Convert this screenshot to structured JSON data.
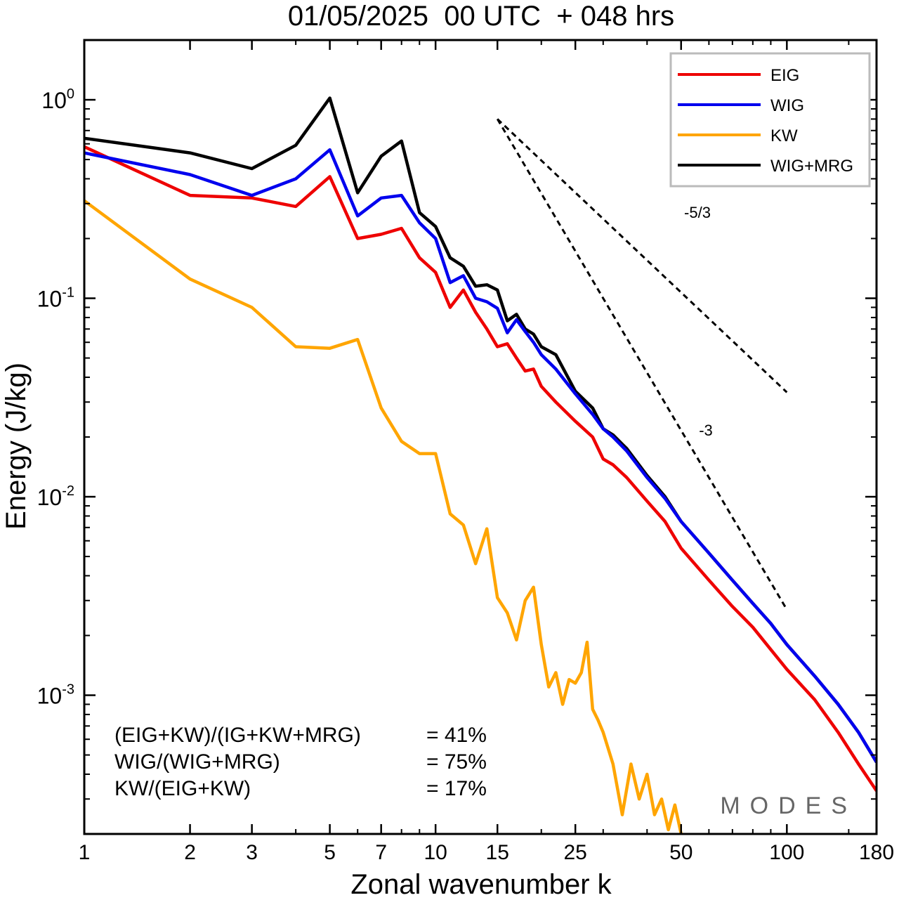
{
  "chart_data": {
    "type": "line",
    "title": "01/05/2025  00 UTC  + 048 hrs",
    "xlabel": "Zonal wavenumber k",
    "ylabel": "Energy (J/kg)",
    "xscale": "log",
    "yscale": "log",
    "xlim": [
      1,
      180
    ],
    "ylim": [
      0.0002,
      2.0
    ],
    "x_ticks": [
      1,
      2,
      3,
      5,
      7,
      10,
      15,
      25,
      50,
      100,
      180
    ],
    "x_tick_labels": [
      "1",
      "2",
      "3",
      "5",
      "7",
      "10",
      "15",
      "25",
      "50",
      "100",
      "180"
    ],
    "y_ticks": [
      {
        "value": 1,
        "base": "10",
        "exp": "0"
      },
      {
        "value": 0.1,
        "base": "10",
        "exp": "-1"
      },
      {
        "value": 0.01,
        "base": "10",
        "exp": "-2"
      },
      {
        "value": 0.001,
        "base": "10",
        "exp": "-3"
      }
    ],
    "grid": false,
    "legend_position": "top-right",
    "series": [
      {
        "name": "EIG",
        "color": "#ee0000",
        "x": [
          1,
          2,
          3,
          4,
          5,
          6,
          7,
          8,
          9,
          10,
          11,
          12,
          13,
          14,
          15,
          16,
          17,
          18,
          19,
          20,
          22,
          25,
          28,
          30,
          32,
          35,
          40,
          45,
          50,
          60,
          70,
          80,
          90,
          100,
          120,
          140,
          160,
          180
        ],
        "y": [
          0.58,
          0.33,
          0.32,
          0.29,
          0.41,
          0.2,
          0.21,
          0.225,
          0.16,
          0.135,
          0.09,
          0.11,
          0.085,
          0.07,
          0.057,
          0.059,
          0.05,
          0.043,
          0.044,
          0.036,
          0.03,
          0.024,
          0.02,
          0.0155,
          0.0145,
          0.0125,
          0.0095,
          0.0075,
          0.0055,
          0.0038,
          0.0028,
          0.0022,
          0.0017,
          0.00135,
          0.00095,
          0.00065,
          0.00045,
          0.00033
        ]
      },
      {
        "name": "WIG",
        "color": "#0000ee",
        "x": [
          1,
          2,
          3,
          4,
          5,
          6,
          7,
          8,
          9,
          10,
          11,
          12,
          13,
          14,
          15,
          16,
          17,
          18,
          19,
          20,
          22,
          25,
          28,
          30,
          32,
          35,
          40,
          45,
          50,
          60,
          70,
          80,
          90,
          100,
          120,
          140,
          160,
          180
        ],
        "y": [
          0.54,
          0.42,
          0.33,
          0.4,
          0.56,
          0.26,
          0.32,
          0.33,
          0.24,
          0.2,
          0.12,
          0.13,
          0.1,
          0.096,
          0.089,
          0.067,
          0.078,
          0.068,
          0.06,
          0.052,
          0.044,
          0.033,
          0.026,
          0.022,
          0.02,
          0.017,
          0.0125,
          0.0098,
          0.0075,
          0.0052,
          0.0038,
          0.0029,
          0.0023,
          0.0018,
          0.00125,
          0.0009,
          0.00065,
          0.00046
        ]
      },
      {
        "name": "KW",
        "color": "#ffa500",
        "x": [
          1,
          2,
          3,
          4,
          5,
          6,
          7,
          8,
          9,
          10,
          11,
          12,
          13,
          14,
          15,
          16,
          17,
          18,
          19,
          20,
          21,
          22,
          23,
          24,
          25,
          26,
          27,
          28,
          29,
          30,
          32,
          34,
          36,
          38,
          40,
          42,
          44,
          46,
          48,
          50
        ],
        "y": [
          0.31,
          0.125,
          0.09,
          0.057,
          0.056,
          0.062,
          0.028,
          0.019,
          0.0165,
          0.0165,
          0.0082,
          0.0072,
          0.0046,
          0.0069,
          0.0031,
          0.0026,
          0.0019,
          0.003,
          0.0035,
          0.0018,
          0.0011,
          0.0013,
          0.0009,
          0.0012,
          0.00115,
          0.0013,
          0.00185,
          0.00085,
          0.00075,
          0.00065,
          0.00045,
          0.00025,
          0.00045,
          0.0003,
          0.0004,
          0.00025,
          0.0003,
          0.00021,
          0.00028,
          0.0002
        ]
      },
      {
        "name": "WIG+MRG",
        "color": "#000000",
        "x": [
          1,
          2,
          3,
          4,
          5,
          6,
          7,
          8,
          9,
          10,
          11,
          12,
          13,
          14,
          15,
          16,
          17,
          18,
          19,
          20,
          22,
          25,
          28,
          30,
          32,
          35,
          40,
          45,
          50,
          60,
          70,
          80,
          90,
          100,
          120,
          140,
          160,
          180
        ],
        "y": [
          0.64,
          0.54,
          0.45,
          0.59,
          1.02,
          0.34,
          0.52,
          0.62,
          0.27,
          0.23,
          0.16,
          0.145,
          0.115,
          0.117,
          0.11,
          0.077,
          0.083,
          0.07,
          0.066,
          0.057,
          0.052,
          0.034,
          0.028,
          0.022,
          0.0205,
          0.0175,
          0.0128,
          0.01,
          0.0075,
          0.0052,
          0.0038,
          0.0029,
          0.0023,
          0.0018,
          0.00125,
          0.0009,
          0.00065,
          0.00046
        ]
      }
    ],
    "reference_lines": [
      {
        "label": "-5/3",
        "x": [
          15,
          100
        ],
        "y": [
          0.8,
          0.0336
        ]
      },
      {
        "label": "-3",
        "x": [
          15,
          100
        ],
        "y": [
          0.8,
          0.0027
        ]
      }
    ],
    "annotations": [
      {
        "label": "(EIG+KW)/(IG+KW+MRG)",
        "value": "= 41%"
      },
      {
        "label": "WIG/(WIG+MRG)",
        "value": "= 75%"
      },
      {
        "label": "KW/(EIG+KW)",
        "value": "= 17%"
      }
    ],
    "watermark": "MODES"
  }
}
